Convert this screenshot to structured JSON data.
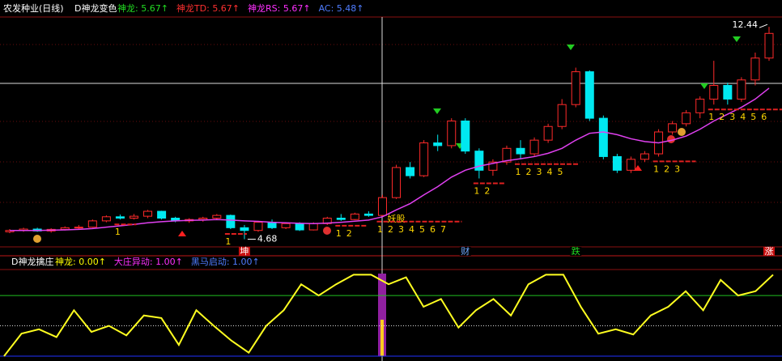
{
  "chart_data": [
    {
      "type": "candlestick",
      "title": "农发种业(日线)",
      "indicator": "D神龙变色",
      "legend": [
        {
          "text": "神龙: 5.67↑",
          "color": "#22dd22"
        },
        {
          "text": "神龙TD: 5.67↑",
          "color": "#ff3030"
        },
        {
          "text": "神龙RS: 5.67↑",
          "color": "#ff30ff"
        },
        {
          "text": "AC: 5.48↑",
          "color": "#4f7dff"
        }
      ],
      "ylim": [
        4.4,
        12.8
      ],
      "up_color": "#ff2a2a",
      "down_color": "#00e8f0",
      "ma_color": "#e040f0",
      "open": [
        4.95,
        5.0,
        5.05,
        4.98,
        5.04,
        5.1,
        5.12,
        5.35,
        5.5,
        5.45,
        5.52,
        5.7,
        5.45,
        5.35,
        5.4,
        5.45,
        5.55,
        5.1,
        5.0,
        5.3,
        5.1,
        5.25,
        5.02,
        5.25,
        5.45,
        5.4,
        5.6,
        5.55,
        6.2,
        7.3,
        7.0,
        8.2,
        8.1,
        9.0,
        7.9,
        7.2,
        7.5,
        8.0,
        7.8,
        8.3,
        8.8,
        9.6,
        10.8,
        9.1,
        7.7,
        7.2,
        7.6,
        7.8,
        8.6,
        8.9,
        9.3,
        9.8,
        10.3,
        9.8,
        10.5,
        11.3
      ],
      "high": [
        5.05,
        5.1,
        5.1,
        5.08,
        5.15,
        5.2,
        5.4,
        5.55,
        5.58,
        5.6,
        5.75,
        5.72,
        5.5,
        5.45,
        5.5,
        5.6,
        5.58,
        5.2,
        5.35,
        5.4,
        5.3,
        5.3,
        5.3,
        5.5,
        5.6,
        5.65,
        5.7,
        6.3,
        7.4,
        7.5,
        8.3,
        8.5,
        9.1,
        9.1,
        8.0,
        7.6,
        8.1,
        8.3,
        8.4,
        8.9,
        9.8,
        10.95,
        10.85,
        9.2,
        7.8,
        7.7,
        7.9,
        8.7,
        9.0,
        9.4,
        9.9,
        11.2,
        10.4,
        10.6,
        11.5,
        12.44
      ],
      "low": [
        4.9,
        4.95,
        4.95,
        4.92,
        5.0,
        5.05,
        5.1,
        5.3,
        5.4,
        5.4,
        5.45,
        5.4,
        5.3,
        5.28,
        5.32,
        5.4,
        5.05,
        4.68,
        4.95,
        5.05,
        5.05,
        4.98,
        5.0,
        5.2,
        5.35,
        5.38,
        5.5,
        5.5,
        6.15,
        6.9,
        6.95,
        7.9,
        8.0,
        7.8,
        6.9,
        7.0,
        7.4,
        7.6,
        7.7,
        8.2,
        8.7,
        9.5,
        9.0,
        7.6,
        7.1,
        7.1,
        7.5,
        7.7,
        8.5,
        8.8,
        9.1,
        9.6,
        9.6,
        9.7,
        10.3,
        11.2
      ],
      "close": [
        5.0,
        5.05,
        4.98,
        5.04,
        5.1,
        5.12,
        5.35,
        5.5,
        5.45,
        5.52,
        5.7,
        5.45,
        5.35,
        5.4,
        5.45,
        5.55,
        5.1,
        5.0,
        5.3,
        5.1,
        5.25,
        5.02,
        5.25,
        5.45,
        5.4,
        5.6,
        5.55,
        6.2,
        7.3,
        7.0,
        8.2,
        8.1,
        9.0,
        7.9,
        7.2,
        7.5,
        8.0,
        7.8,
        8.3,
        8.8,
        9.6,
        10.8,
        9.1,
        7.7,
        7.2,
        7.6,
        7.8,
        8.6,
        8.9,
        9.3,
        9.8,
        10.3,
        9.8,
        10.5,
        11.3,
        12.2
      ],
      "ma": [
        5.0,
        5.0,
        5.0,
        5.01,
        5.02,
        5.04,
        5.07,
        5.12,
        5.17,
        5.22,
        5.28,
        5.32,
        5.35,
        5.37,
        5.38,
        5.4,
        5.38,
        5.35,
        5.33,
        5.3,
        5.28,
        5.26,
        5.25,
        5.27,
        5.3,
        5.34,
        5.38,
        5.5,
        5.75,
        5.98,
        6.3,
        6.6,
        6.95,
        7.2,
        7.35,
        7.45,
        7.55,
        7.62,
        7.7,
        7.82,
        8.0,
        8.3,
        8.55,
        8.6,
        8.5,
        8.35,
        8.25,
        8.2,
        8.3,
        8.45,
        8.7,
        9.0,
        9.25,
        9.5,
        9.8,
        10.2
      ],
      "annotations": [
        {
          "text": "妖股",
          "index": 27,
          "color": "#ffd700"
        },
        {
          "text": "4.68",
          "index": 17,
          "color": "#ffffff"
        },
        {
          "text": "12.44",
          "index": 55,
          "color": "#ffffff"
        }
      ],
      "count_marks": [
        {
          "index": 8,
          "labels": [
            1
          ]
        },
        {
          "index": 16,
          "labels": [
            1
          ]
        },
        {
          "index": 24,
          "labels": [
            1,
            2
          ]
        },
        {
          "index": 27,
          "labels": [
            1,
            2,
            3,
            4,
            5,
            6,
            7
          ]
        },
        {
          "index": 34,
          "labels": [
            1,
            2
          ]
        },
        {
          "index": 37,
          "labels": [
            1,
            2,
            3,
            4,
            5
          ]
        },
        {
          "index": 47,
          "labels": [
            1,
            2,
            3
          ]
        },
        {
          "index": 51,
          "labels": [
            1,
            2,
            3,
            4,
            5,
            6
          ]
        }
      ],
      "strip_labels": [
        {
          "text": "坤",
          "index": 17,
          "color": "#ffffff",
          "bg": "#c81010"
        },
        {
          "text": "财",
          "index": 33,
          "color": "#6fa8ff",
          "bg": "#000000"
        },
        {
          "text": "跌",
          "index": 41,
          "color": "#22dd22",
          "bg": "#000000"
        },
        {
          "text": "涨",
          "index": 55,
          "color": "#ffffff",
          "bg": "#c81010"
        }
      ]
    },
    {
      "type": "line",
      "indicator": "D神龙擒庄",
      "legend": [
        {
          "text": "神龙: 0.00↑",
          "color": "#ffff00"
        },
        {
          "text": "大庄异动: 1.00↑",
          "color": "#ff30ff"
        },
        {
          "text": "黑马启动: 1.00↑",
          "color": "#4f7dff"
        }
      ],
      "ylim": [
        0,
        100
      ],
      "color": "#ffff20",
      "reference_lines": [
        {
          "value": 70,
          "color": "#20c020"
        },
        {
          "value": 35,
          "color": "#dddddd",
          "dotted": true
        },
        {
          "value": 0,
          "color": "#2030ff"
        }
      ],
      "values": [
        0,
        26,
        31,
        22,
        53,
        28,
        35,
        24,
        47,
        44,
        13,
        53,
        35,
        18,
        4,
        35,
        53,
        83,
        70,
        83,
        94,
        94,
        83,
        91,
        57,
        66,
        33,
        53,
        66,
        47,
        83,
        94,
        94,
        57,
        26,
        31,
        25,
        47,
        57,
        75,
        53,
        88,
        70,
        75,
        94
      ]
    }
  ]
}
